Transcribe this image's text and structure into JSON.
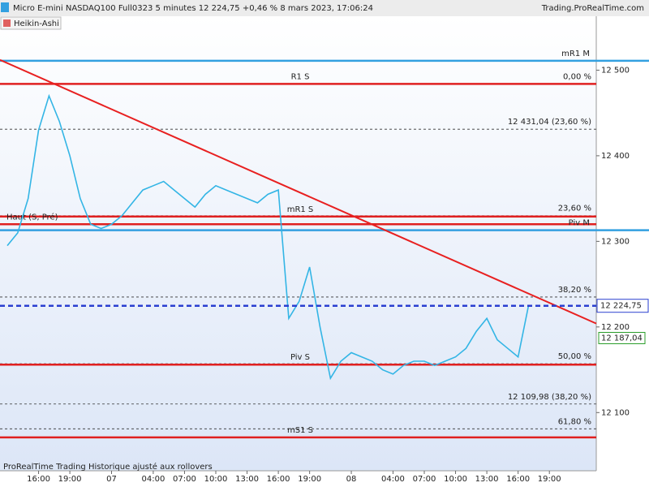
{
  "chart_data": {
    "type": "line",
    "title": "Micro E-mini NASDAQ100 Full0323 5 minutes 12 224,75 +0,46 % 8 mars 2023, 17:06:24",
    "source": "Trading.ProRealTime.com",
    "mode": "Heikin-Ashi",
    "footer": "ProRealTime Trading  Historique ajusté aux rollovers",
    "categories": [
      null,
      null,
      null,
      "16:00",
      null,
      null,
      "19:00",
      null,
      null,
      null,
      "07",
      null,
      null,
      null,
      "04:00",
      null,
      null,
      "07:00",
      null,
      null,
      "10:00",
      null,
      null,
      "13:00",
      null,
      null,
      "16:00",
      null,
      null,
      "19:00",
      null,
      null,
      null,
      "08",
      null,
      null,
      null,
      "04:00",
      null,
      null,
      "07:00",
      null,
      null,
      "10:00",
      null,
      null,
      "13:00",
      null,
      null,
      "16:00",
      null,
      null,
      "19:00",
      null,
      null,
      null,
      null
    ],
    "series": [
      {
        "name": "Heikin-Ashi",
        "color": "#33b5e5",
        "values": [
          12295,
          12310,
          12350,
          12430,
          12470,
          12440,
          12400,
          12350,
          12320,
          12315,
          12320,
          12330,
          12345,
          12360,
          12365,
          12370,
          12360,
          12350,
          12340,
          12355,
          12365,
          12360,
          12355,
          12350,
          12345,
          12355,
          12360,
          12210,
          12230,
          12270,
          12200,
          12140,
          12160,
          12170,
          12165,
          12160,
          12150,
          12145,
          12155,
          12160,
          12160,
          12155,
          12160,
          12165,
          12175,
          12195,
          12210,
          12185,
          12175,
          12165,
          12225,
          null,
          null,
          null,
          null,
          null,
          null
        ]
      }
    ],
    "ylim": [
      12032,
      12563
    ],
    "yticks": [
      {
        "value": 12100,
        "label": "12 100"
      },
      {
        "value": 12200,
        "label": "12 200"
      },
      {
        "value": 12300,
        "label": "12 300"
      },
      {
        "value": 12400,
        "label": "12 400"
      },
      {
        "value": 12500,
        "label": "12 500"
      }
    ],
    "levels": [
      {
        "name": "mR1 M",
        "value": 12511,
        "color": "#33a0e0",
        "label_position": "right"
      },
      {
        "name": "R1 S",
        "value": 12484,
        "color": "#e02020",
        "label_position": "center"
      },
      {
        "name": "mR1 S",
        "value": 12329,
        "color": "#e02020",
        "label_position": "center"
      },
      {
        "name": "Haut (S, Pré)",
        "value": 12320,
        "color": "#e02020",
        "label_position": "left"
      },
      {
        "name": "Piv M",
        "value": 12313,
        "color": "#33a0e0",
        "label_position": "right"
      },
      {
        "name": "Piv S",
        "value": 12156,
        "color": "#e02020",
        "label_position": "center"
      },
      {
        "name": "mS1 S",
        "value": 12071,
        "color": "#e02020",
        "label_position": "center"
      }
    ],
    "fibonacci": [
      {
        "label": "0,00 %",
        "value": 12484
      },
      {
        "label": "12 431,04 (23,60 %)",
        "value": 12431.04
      },
      {
        "label": "23,60 %",
        "value": 12330
      },
      {
        "label": "38,20 %",
        "value": 12235
      },
      {
        "label": "50,00 %",
        "value": 12157
      },
      {
        "label": "12 109,98 (38,20 %)",
        "value": 12109.98
      },
      {
        "label": "61,80 %",
        "value": 12081
      }
    ],
    "trendline": {
      "start": 12512,
      "end": 12204,
      "color": "#e82020"
    },
    "last": {
      "value": 12224.75,
      "label": "12 224,75",
      "color": "#2a3fd0"
    },
    "ma_last": {
      "value": 12187.04,
      "label": "12 187,04",
      "color": "#2a9d2a"
    }
  }
}
